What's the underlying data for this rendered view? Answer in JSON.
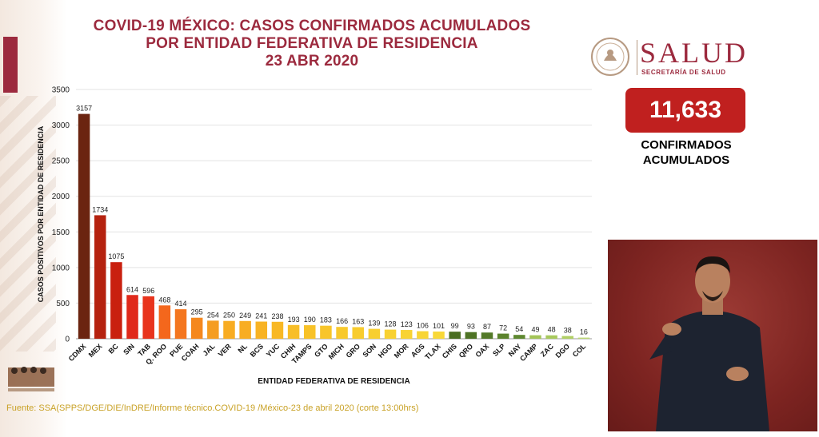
{
  "header": {
    "title_lines": [
      "COVID-19 MÉXICO: CASOS CONFIRMADOS ACUMULADOS",
      "POR ENTIDAD FEDERATIVA DE RESIDENCIA",
      "23 ABR 2020"
    ]
  },
  "logo": {
    "word": "SALUD",
    "subtitle": "SECRETARÍA DE SALUD"
  },
  "total": {
    "value": "11,633",
    "label_line1": "CONFIRMADOS",
    "label_line2": "ACUMULADOS"
  },
  "source": "Fuente: SSA(SPPS/DGE/DIE/InDRE/Informe técnico.COVID-19 /México-23 de abril 2020 (corte 13:00hrs)",
  "colors": {
    "brand": "#9c2a3e",
    "total_box": "#c0201f"
  },
  "chart_data": {
    "type": "bar",
    "xlabel": "ENTIDAD FEDERATIVA DE RESIDENCIA",
    "ylabel": "CASOS POSITIVOS POR ENTIDAD DE RESIDENCIA",
    "ylim": [
      0,
      3500
    ],
    "yticks": [
      0,
      500,
      1000,
      1500,
      2000,
      2500,
      3000,
      3500
    ],
    "grid": true,
    "categories": [
      "CDMX",
      "MEX",
      "BC",
      "SIN",
      "TAB",
      "Q. ROO",
      "PUE",
      "COAH",
      "JAL",
      "VER",
      "NL",
      "BCS",
      "YUC",
      "CHIH",
      "TAMPS",
      "GTO",
      "MICH",
      "GRO",
      "SON",
      "HGO",
      "MOR",
      "AGS",
      "TLAX",
      "CHIS",
      "QRO",
      "OAX",
      "SLP",
      "NAY",
      "CAMP",
      "ZAC",
      "DGO",
      "COL"
    ],
    "values": [
      3157,
      1734,
      1075,
      614,
      596,
      468,
      414,
      295,
      254,
      250,
      249,
      241,
      238,
      193,
      190,
      183,
      166,
      163,
      139,
      128,
      123,
      106,
      101,
      99,
      93,
      87,
      72,
      54,
      49,
      48,
      38,
      16
    ],
    "bar_colors": [
      "#6b2410",
      "#b5220f",
      "#c9200f",
      "#e0291b",
      "#e8341d",
      "#f4671c",
      "#f4761f",
      "#f5881e",
      "#f59d21",
      "#f8ac22",
      "#f8ad23",
      "#f8b324",
      "#f8b825",
      "#f8be27",
      "#f8c228",
      "#f8c52a",
      "#f8c92c",
      "#f8cc2e",
      "#f8cf30",
      "#f8d132",
      "#f8d334",
      "#f8d536",
      "#f8d838",
      "#4a6d22",
      "#4e7325",
      "#537928",
      "#5b832d",
      "#5e8830",
      "#a3c457",
      "#a8c95d",
      "#b1d065",
      "#bcd874"
    ]
  }
}
